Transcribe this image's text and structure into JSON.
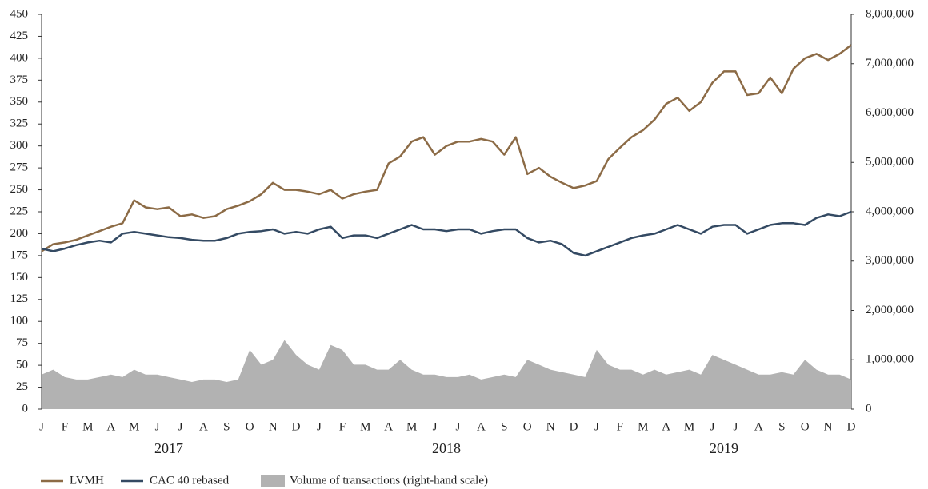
{
  "chart_data": {
    "type": "line",
    "categories": [
      "J",
      null,
      "F",
      null,
      "M",
      null,
      "A",
      null,
      "M",
      null,
      "J",
      null,
      "J",
      null,
      "A",
      null,
      "S",
      null,
      "O",
      null,
      "N",
      null,
      "D",
      null,
      "J",
      null,
      "F",
      null,
      "M",
      null,
      "A",
      null,
      "M",
      null,
      "J",
      null,
      "J",
      null,
      "A",
      null,
      "S",
      null,
      "O",
      null,
      "N",
      null,
      "D",
      null,
      "J",
      null,
      "F",
      null,
      "M",
      null,
      "A",
      null,
      "M",
      null,
      "J",
      null,
      "J",
      null,
      "A",
      null,
      "S",
      null,
      "O",
      null,
      "N",
      null,
      "D"
    ],
    "years": [
      "2017",
      "2018",
      "2019"
    ],
    "ylim": [
      0,
      450
    ],
    "yticks": [
      0,
      25,
      50,
      75,
      100,
      125,
      150,
      175,
      200,
      225,
      250,
      275,
      300,
      325,
      350,
      375,
      400,
      425,
      450
    ],
    "y2lim": [
      0,
      8000000
    ],
    "y2ticks": [
      0,
      {
        "value": 1000000,
        "label": "1,000,000"
      },
      {
        "value": 2000000,
        "label": "2,000,000"
      },
      {
        "value": 3000000,
        "label": "3,000,000"
      },
      {
        "value": 4000000,
        "label": "4,000,000"
      },
      {
        "value": 5000000,
        "label": "5,000,000"
      },
      {
        "value": 6000000,
        "label": "6,000,000"
      },
      {
        "value": 7000000,
        "label": "7,000,000"
      },
      {
        "value": 8000000,
        "label": "8,000,000"
      }
    ],
    "series": [
      {
        "name": "LVMH",
        "color": "#8c6b46",
        "kind": "line",
        "values": [
          180,
          188,
          190,
          193,
          198,
          203,
          208,
          212,
          238,
          230,
          228,
          230,
          220,
          222,
          218,
          220,
          228,
          232,
          237,
          245,
          258,
          250,
          250,
          248,
          245,
          250,
          240,
          245,
          248,
          250,
          280,
          288,
          305,
          310,
          290,
          300,
          305,
          305,
          308,
          305,
          290,
          310,
          268,
          275,
          265,
          258,
          252,
          255,
          260,
          285,
          298,
          310,
          318,
          330,
          348,
          355,
          340,
          350,
          372,
          385,
          385,
          358,
          360,
          378,
          360,
          388,
          400,
          405,
          398,
          405,
          415
        ]
      },
      {
        "name": "CAC 40 rebased",
        "color": "#344a63",
        "kind": "line",
        "values": [
          183,
          180,
          183,
          187,
          190,
          192,
          190,
          200,
          202,
          200,
          198,
          196,
          195,
          193,
          192,
          192,
          195,
          200,
          202,
          203,
          205,
          200,
          202,
          200,
          205,
          208,
          195,
          198,
          198,
          195,
          200,
          205,
          210,
          205,
          205,
          203,
          205,
          205,
          200,
          203,
          205,
          205,
          195,
          190,
          192,
          188,
          178,
          175,
          180,
          185,
          190,
          195,
          198,
          200,
          205,
          210,
          205,
          200,
          208,
          210,
          210,
          200,
          205,
          210,
          212,
          212,
          210,
          218,
          222,
          220,
          225
        ]
      },
      {
        "name": "Volume of transactions (right-hand scale)",
        "color": "#b2b2b2",
        "kind": "area",
        "axis": "y2",
        "values": [
          700000,
          800000,
          650000,
          600000,
          600000,
          650000,
          700000,
          650000,
          800000,
          700000,
          700000,
          650000,
          600000,
          550000,
          600000,
          600000,
          550000,
          600000,
          1200000,
          900000,
          1000000,
          1400000,
          1100000,
          900000,
          800000,
          1300000,
          1200000,
          900000,
          900000,
          800000,
          800000,
          1000000,
          800000,
          700000,
          700000,
          650000,
          650000,
          700000,
          600000,
          650000,
          700000,
          650000,
          1000000,
          900000,
          800000,
          750000,
          700000,
          650000,
          1200000,
          900000,
          800000,
          800000,
          700000,
          800000,
          700000,
          750000,
          800000,
          700000,
          1100000,
          1000000,
          900000,
          800000,
          700000,
          700000,
          750000,
          700000,
          1000000,
          800000,
          700000,
          700000,
          600000
        ]
      }
    ]
  }
}
